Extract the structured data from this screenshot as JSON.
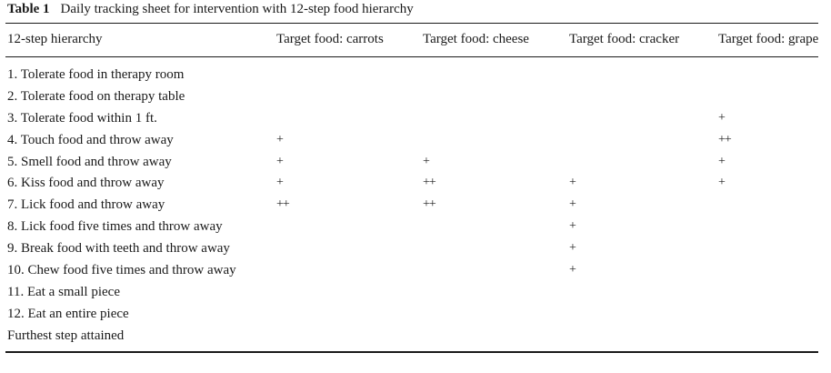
{
  "caption": {
    "label": "Table 1",
    "title": "Daily tracking sheet for intervention with 12-step food hierarchy"
  },
  "headers": [
    "12-step hierarchy",
    "Target food: carrots",
    "Target food: cheese",
    "Target food: cracker",
    "Target food: grape"
  ],
  "rows": [
    {
      "step": "1. Tolerate food in therapy room",
      "carrots": "",
      "cheese": "",
      "cracker": "",
      "grape": ""
    },
    {
      "step": "2. Tolerate food on therapy table",
      "carrots": "",
      "cheese": "",
      "cracker": "",
      "grape": ""
    },
    {
      "step": "3. Tolerate food within 1 ft.",
      "carrots": "",
      "cheese": "",
      "cracker": "",
      "grape": "+"
    },
    {
      "step": "4. Touch food and throw away",
      "carrots": "+",
      "cheese": "",
      "cracker": "",
      "grape": "++"
    },
    {
      "step": "5. Smell food and throw away",
      "carrots": "+",
      "cheese": "+",
      "cracker": "",
      "grape": "+"
    },
    {
      "step": "6. Kiss food and throw away",
      "carrots": "+",
      "cheese": "++",
      "cracker": "+",
      "grape": "+"
    },
    {
      "step": "7. Lick food and throw away",
      "carrots": "++",
      "cheese": "++",
      "cracker": "+",
      "grape": ""
    },
    {
      "step": "8. Lick food five times and throw away",
      "carrots": "",
      "cheese": "",
      "cracker": "+",
      "grape": ""
    },
    {
      "step": "9. Break food with teeth and throw away",
      "carrots": "",
      "cheese": "",
      "cracker": "+",
      "grape": ""
    },
    {
      "step": "10. Chew food five times and throw away",
      "carrots": "",
      "cheese": "",
      "cracker": "+",
      "grape": ""
    },
    {
      "step": "11. Eat a small piece",
      "carrots": "",
      "cheese": "",
      "cracker": "",
      "grape": ""
    },
    {
      "step": "12. Eat an entire piece",
      "carrots": "",
      "cheese": "",
      "cracker": "",
      "grape": ""
    },
    {
      "step": "Furthest step attained",
      "carrots": "",
      "cheese": "",
      "cracker": "",
      "grape": ""
    }
  ]
}
